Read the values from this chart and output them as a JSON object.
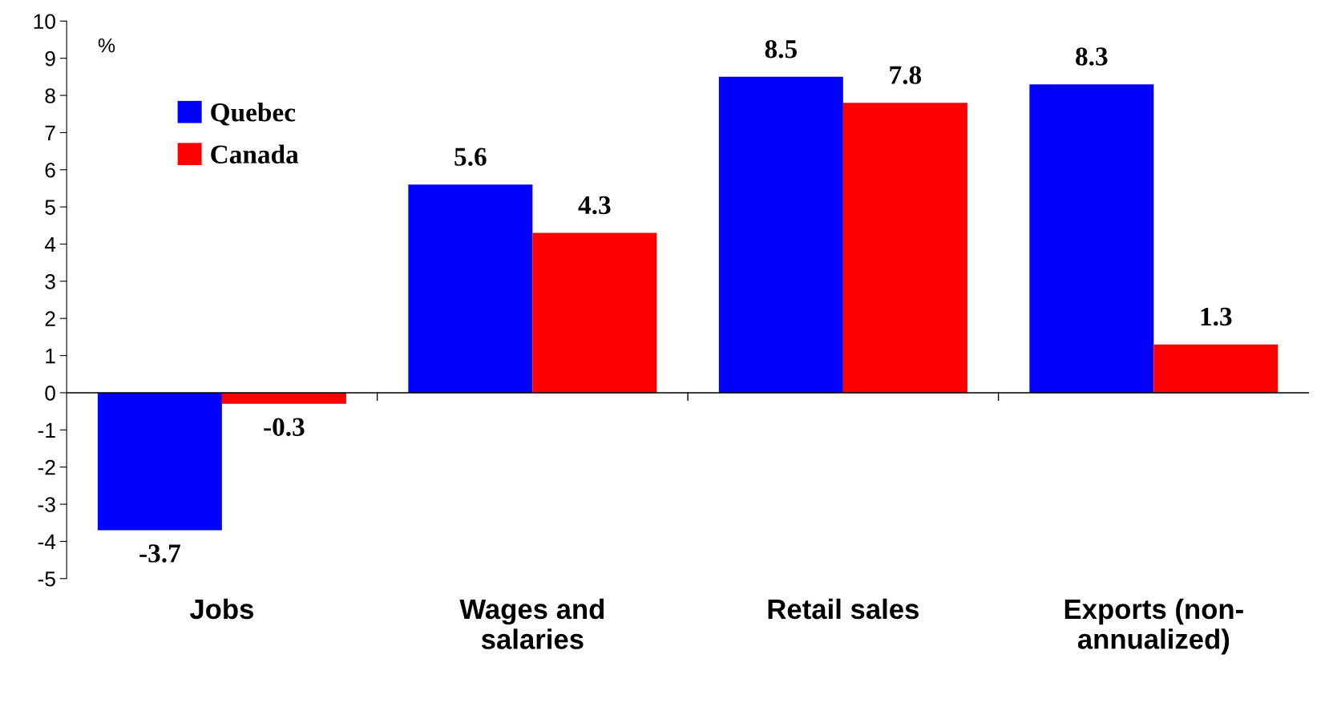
{
  "chart_data": {
    "type": "bar",
    "categories": [
      "Jobs",
      "Wages and\nsalaries",
      "Retail sales",
      "Exports (non-\nannualized)"
    ],
    "series": [
      {
        "name": "Quebec",
        "color": "#0000ff",
        "values": [
          -3.7,
          5.6,
          8.5,
          8.3
        ]
      },
      {
        "name": "Canada",
        "color": "#ff0000",
        "values": [
          -0.3,
          4.3,
          7.8,
          1.3
        ]
      }
    ],
    "ylim": [
      -5,
      10
    ],
    "yticks": [
      -5,
      -4,
      -3,
      -2,
      -1,
      0,
      1,
      2,
      3,
      4,
      5,
      6,
      7,
      8,
      9,
      10
    ],
    "annotations": [
      "%"
    ],
    "data_labels": true,
    "legend": "top left"
  }
}
